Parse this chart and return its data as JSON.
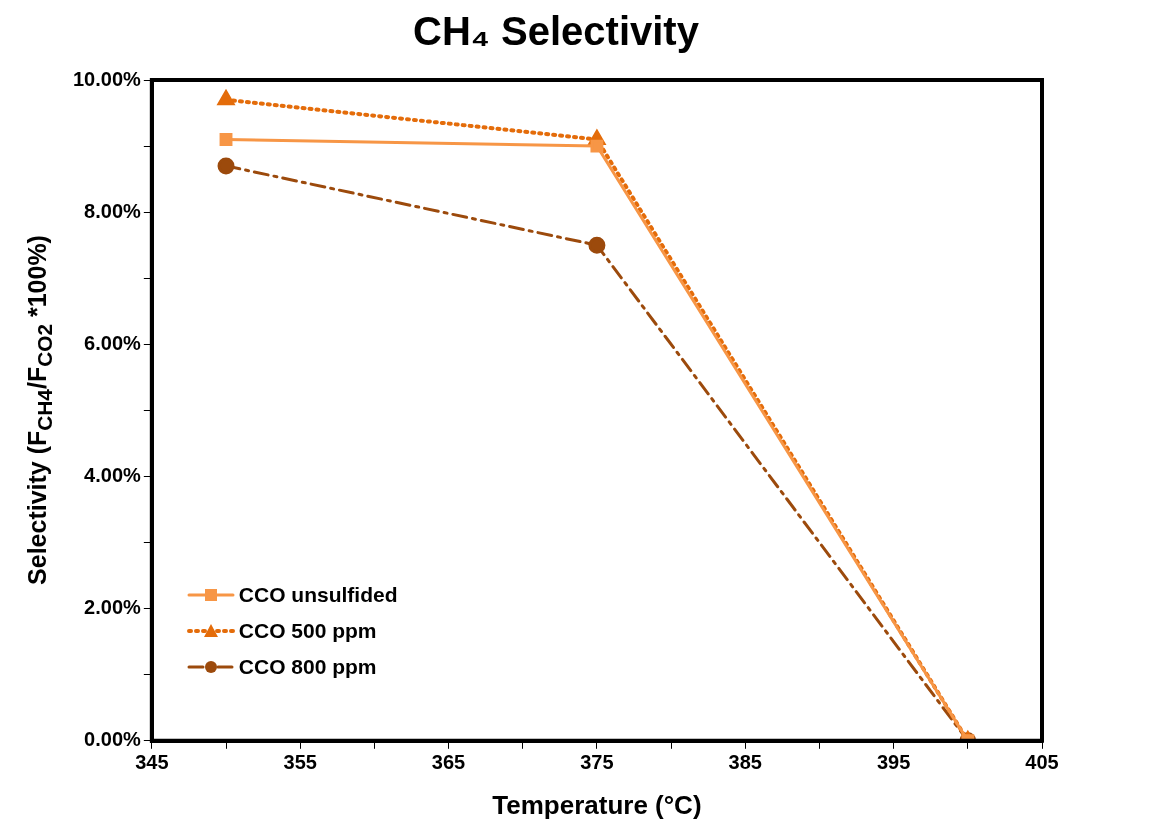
{
  "chart_data": {
    "type": "line",
    "title": "CH₄ Selectivity",
    "xlabel": "Temperature (°C)",
    "ylabel": "Selectivity (F$_{CH4}$/F$_{CO2}$ *100%)",
    "x": [
      350,
      375,
      400
    ],
    "series": [
      {
        "name": "CCO unsulfided",
        "color": "#f79646",
        "values": [
          9.1,
          9.0,
          0
        ],
        "marker": "square",
        "line_style": "solid"
      },
      {
        "name": "CCO 500 ppm",
        "color": "#e46c0a",
        "values": [
          9.7,
          9.1,
          0
        ],
        "marker": "triangle",
        "line_style": "dotted"
      },
      {
        "name": "CCO 800 ppm",
        "color": "#9c4a0c",
        "values": [
          8.7,
          7.5,
          0
        ],
        "marker": "circle",
        "line_style": "dashed"
      }
    ],
    "xlim": [
      345,
      405
    ],
    "xticks": [
      345,
      {
        "value": 350,
        "label": null
      },
      355,
      {
        "value": 360,
        "label": null
      },
      365,
      {
        "value": 370,
        "label": null
      },
      375,
      {
        "value": 380,
        "label": null
      },
      385,
      {
        "value": 390,
        "label": null
      },
      395,
      {
        "value": 400,
        "label": null
      },
      405
    ],
    "ylim": [
      0,
      10
    ],
    "yticks": [
      {
        "value": 0,
        "label": "0.00%"
      },
      {
        "value": 1,
        "label": null
      },
      {
        "value": 2,
        "label": "2.00%"
      },
      {
        "value": 3,
        "label": null
      },
      {
        "value": 4,
        "label": "4.00%"
      },
      {
        "value": 5,
        "label": null
      },
      {
        "value": 6,
        "label": "6.00%"
      },
      {
        "value": 7,
        "label": null
      },
      {
        "value": 8,
        "label": "8.00%"
      },
      {
        "value": 9,
        "label": null
      },
      {
        "value": 10,
        "label": "10.00%"
      }
    ],
    "grid": false,
    "legend": "bottom left"
  }
}
